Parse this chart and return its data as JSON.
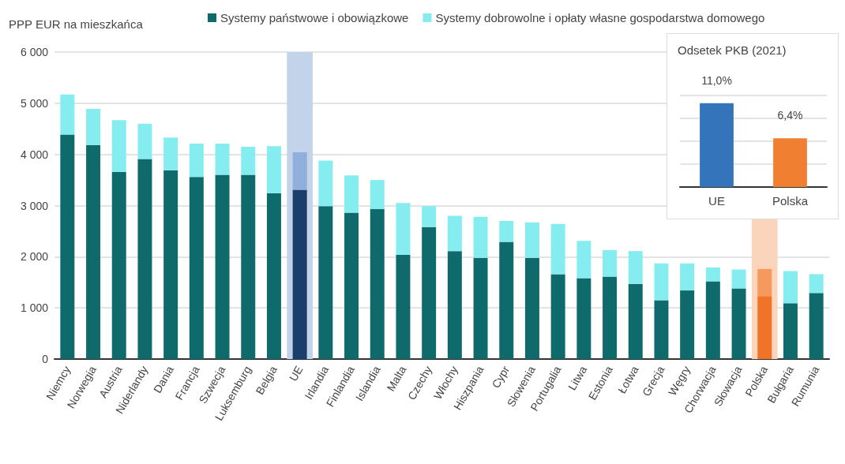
{
  "chart_data": [
    {
      "type": "bar",
      "stacked": true,
      "ylabel": "PPP EUR na mieszkańca",
      "categories": [
        "Niemcy",
        "Norwegia",
        "Austria",
        "Niderlandy",
        "Dania",
        "Francja",
        "Szwecja",
        "Luksemburg",
        "Belgia",
        "UE",
        "Irlandia",
        "Finlandia",
        "Islandia",
        "Malta",
        "Czechy",
        "Włochy",
        "Hiszpania",
        "Cypr",
        "Słowenia",
        "Portugalia",
        "Litwa",
        "Estonia",
        "Łotwa",
        "Grecja",
        "Węgry",
        "Chorwacja",
        "Słowacja",
        "Polska",
        "Bułgaria",
        "Rumunia"
      ],
      "series": [
        {
          "name": "Systemy państwowe i obowiązkowe",
          "color": "#0f6b6b",
          "colors": [
            "#0f6b6b",
            "#0f6b6b",
            "#0f6b6b",
            "#0f6b6b",
            "#0f6b6b",
            "#0f6b6b",
            "#0f6b6b",
            "#0f6b6b",
            "#0f6b6b",
            "#1a3f6b",
            "#0f6b6b",
            "#0f6b6b",
            "#0f6b6b",
            "#0f6b6b",
            "#0f6b6b",
            "#0f6b6b",
            "#0f6b6b",
            "#0f6b6b",
            "#0f6b6b",
            "#0f6b6b",
            "#0f6b6b",
            "#0f6b6b",
            "#0f6b6b",
            "#0f6b6b",
            "#0f6b6b",
            "#0f6b6b",
            "#0f6b6b",
            "#f07327",
            "#0f6b6b",
            "#0f6b6b"
          ],
          "values": [
            4390,
            4180,
            3660,
            3910,
            3690,
            3560,
            3600,
            3600,
            3240,
            3310,
            2990,
            2860,
            2930,
            2040,
            2580,
            2110,
            1980,
            2290,
            1980,
            1660,
            1580,
            1610,
            1470,
            1150,
            1340,
            1520,
            1380,
            1230,
            1090,
            1290
          ]
        },
        {
          "name": "Systemy dobrowolne i opłaty własne gospodarstwa domowego",
          "color": "#85ecef",
          "colors": [
            "#85ecef",
            "#85ecef",
            "#85ecef",
            "#85ecef",
            "#85ecef",
            "#85ecef",
            "#85ecef",
            "#85ecef",
            "#85ecef",
            "#8fb0dc",
            "#85ecef",
            "#85ecef",
            "#85ecef",
            "#85ecef",
            "#85ecef",
            "#85ecef",
            "#85ecef",
            "#85ecef",
            "#85ecef",
            "#85ecef",
            "#85ecef",
            "#85ecef",
            "#85ecef",
            "#85ecef",
            "#85ecef",
            "#85ecef",
            "#85ecef",
            "#f5995e",
            "#85ecef",
            "#85ecef"
          ],
          "values": [
            780,
            710,
            1010,
            690,
            640,
            650,
            610,
            550,
            920,
            730,
            890,
            730,
            570,
            1010,
            410,
            690,
            800,
            410,
            690,
            980,
            730,
            520,
            640,
            720,
            530,
            270,
            370,
            530,
            630,
            370
          ]
        }
      ],
      "ylim": [
        0,
        6000
      ],
      "yticks": [
        0,
        {
          "value": 1000,
          "label": "1 000"
        },
        {
          "value": 2000,
          "label": "2 000"
        },
        {
          "value": 3000,
          "label": "3 000"
        },
        {
          "value": 4000,
          "label": "4 000"
        },
        {
          "value": 5000,
          "label": "5 000"
        },
        {
          "value": 6000,
          "label": "6 000"
        }
      ],
      "grid": "y",
      "legend": "top",
      "bands": [
        {
          "axis": "x",
          "from": "UE",
          "to": "UE",
          "color": "#c3d3ea"
        },
        {
          "axis": "x",
          "from": "Polska",
          "to": "Polska",
          "color": "#fbd5bb"
        }
      ]
    },
    {
      "type": "bar",
      "title": "Odsetek PKB (2021)",
      "categories": [
        "UE",
        "Polska"
      ],
      "series": [
        {
          "colors": [
            "#3474bb",
            "#f07f32"
          ],
          "values": [
            11.0,
            6.4
          ],
          "value_labels": [
            "11,0%",
            "6,4%"
          ]
        }
      ],
      "ylim": [
        0,
        12
      ],
      "yticks": [
        {
          "value": 0,
          "label": null
        },
        {
          "value": 3,
          "label": null
        },
        {
          "value": 6,
          "label": null
        },
        {
          "value": 9,
          "label": null
        },
        {
          "value": 12,
          "label": null
        }
      ],
      "grid": "y",
      "tick_labels": "x"
    }
  ]
}
